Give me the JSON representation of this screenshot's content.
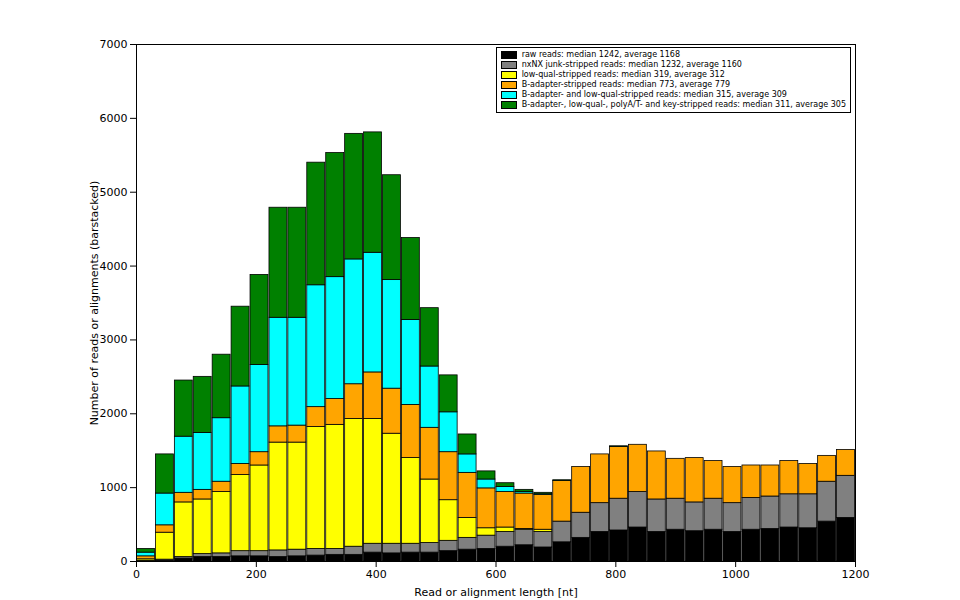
{
  "chart_data": {
    "type": "histogram",
    "x_label": "Read or alignment length [nt]",
    "y_label": "Number of reads or alignments (barstacked)",
    "bins": [
      0,
      31.6,
      63.2,
      94.7,
      126.3,
      157.9,
      189.5,
      221.1,
      252.6,
      284.2,
      315.8,
      347.4,
      378.9,
      410.5,
      442.1,
      473.7,
      505.3,
      536.8,
      568.4,
      600,
      631.6,
      663.2,
      694.7,
      726.3,
      757.9,
      789.5,
      821.1,
      852.6,
      884.2,
      915.8,
      947.4,
      978.9,
      1010.5,
      1042.1,
      1073.7,
      1105.3,
      1136.8,
      1168.4,
      1200
    ],
    "series": [
      {
        "name": "raw reads: median 1242, average 1168",
        "color": "#000000",
        "values": [
          5,
          10,
          40,
          60,
          60,
          70,
          70,
          60,
          70,
          80,
          90,
          90,
          120,
          110,
          120,
          120,
          140,
          160,
          170,
          200,
          220,
          190,
          260,
          320,
          400,
          420,
          460,
          400,
          430,
          410,
          430,
          400,
          430,
          440,
          460,
          450,
          540,
          590
        ]
      },
      {
        "name": "nxNX junk-stripped reads: median 1232, average 1160",
        "color": "#808080",
        "values": [
          5,
          15,
          20,
          40,
          50,
          70,
          70,
          90,
          90,
          90,
          80,
          110,
          120,
          130,
          120,
          130,
          140,
          160,
          180,
          200,
          210,
          210,
          280,
          340,
          390,
          430,
          480,
          440,
          420,
          390,
          420,
          390,
          430,
          440,
          450,
          460,
          540,
          570
        ]
      },
      {
        "name": "low-qual-stripped reads: median 319, average 312",
        "color": "#ffff00",
        "values": [
          20,
          365,
          740,
          740,
          830,
          1030,
          1160,
          1460,
          1450,
          1650,
          1680,
          1730,
          1690,
          1490,
          1160,
          860,
          550,
          270,
          100,
          60,
          10,
          30,
          0,
          0,
          0,
          0,
          0,
          0,
          0,
          0,
          0,
          0,
          0,
          0,
          0,
          0,
          0,
          0
        ]
      },
      {
        "name": "B-adapter-stripped reads: median 773, average 779",
        "color": "#ffa500",
        "values": [
          40,
          100,
          130,
          130,
          140,
          150,
          180,
          220,
          230,
          270,
          350,
          470,
          630,
          610,
          720,
          700,
          650,
          610,
          540,
          480,
          480,
          470,
          550,
          620,
          660,
          700,
          640,
          650,
          540,
          600,
          510,
          490,
          440,
          420,
          450,
          410,
          350,
          350
        ]
      },
      {
        "name": "B-adapter- and low-qual-stripped reads: median 315, average 309",
        "color": "#00ffff",
        "values": [
          50,
          430,
          760,
          770,
          860,
          1050,
          1180,
          1470,
          1460,
          1650,
          1650,
          1690,
          1620,
          1470,
          1150,
          830,
          540,
          250,
          120,
          70,
          20,
          10,
          0,
          0,
          0,
          0,
          0,
          0,
          0,
          0,
          0,
          0,
          0,
          0,
          0,
          0,
          0,
          0
        ]
      },
      {
        "name": "B-adapter-, low-qual-, polyA/T- and key-stripped reads: median 311, average 305",
        "color": "#008000",
        "values": [
          50,
          530,
          760,
          760,
          860,
          1080,
          1220,
          1490,
          1490,
          1660,
          1680,
          1700,
          1630,
          1420,
          1110,
          790,
          500,
          270,
          110,
          50,
          30,
          20,
          10,
          0,
          0,
          10,
          0,
          0,
          0,
          0,
          0,
          0,
          0,
          0,
          0,
          0,
          0,
          0
        ]
      }
    ],
    "xlim": [
      0,
      1200
    ],
    "xticks": [
      0,
      200,
      400,
      600,
      800,
      1000,
      1200
    ],
    "ylim": [
      0,
      7000
    ],
    "yticks": [
      0,
      1000,
      2000,
      3000,
      4000,
      5000,
      6000,
      7000
    ],
    "stacked": true,
    "legend": "upper right",
    "grid": false
  }
}
